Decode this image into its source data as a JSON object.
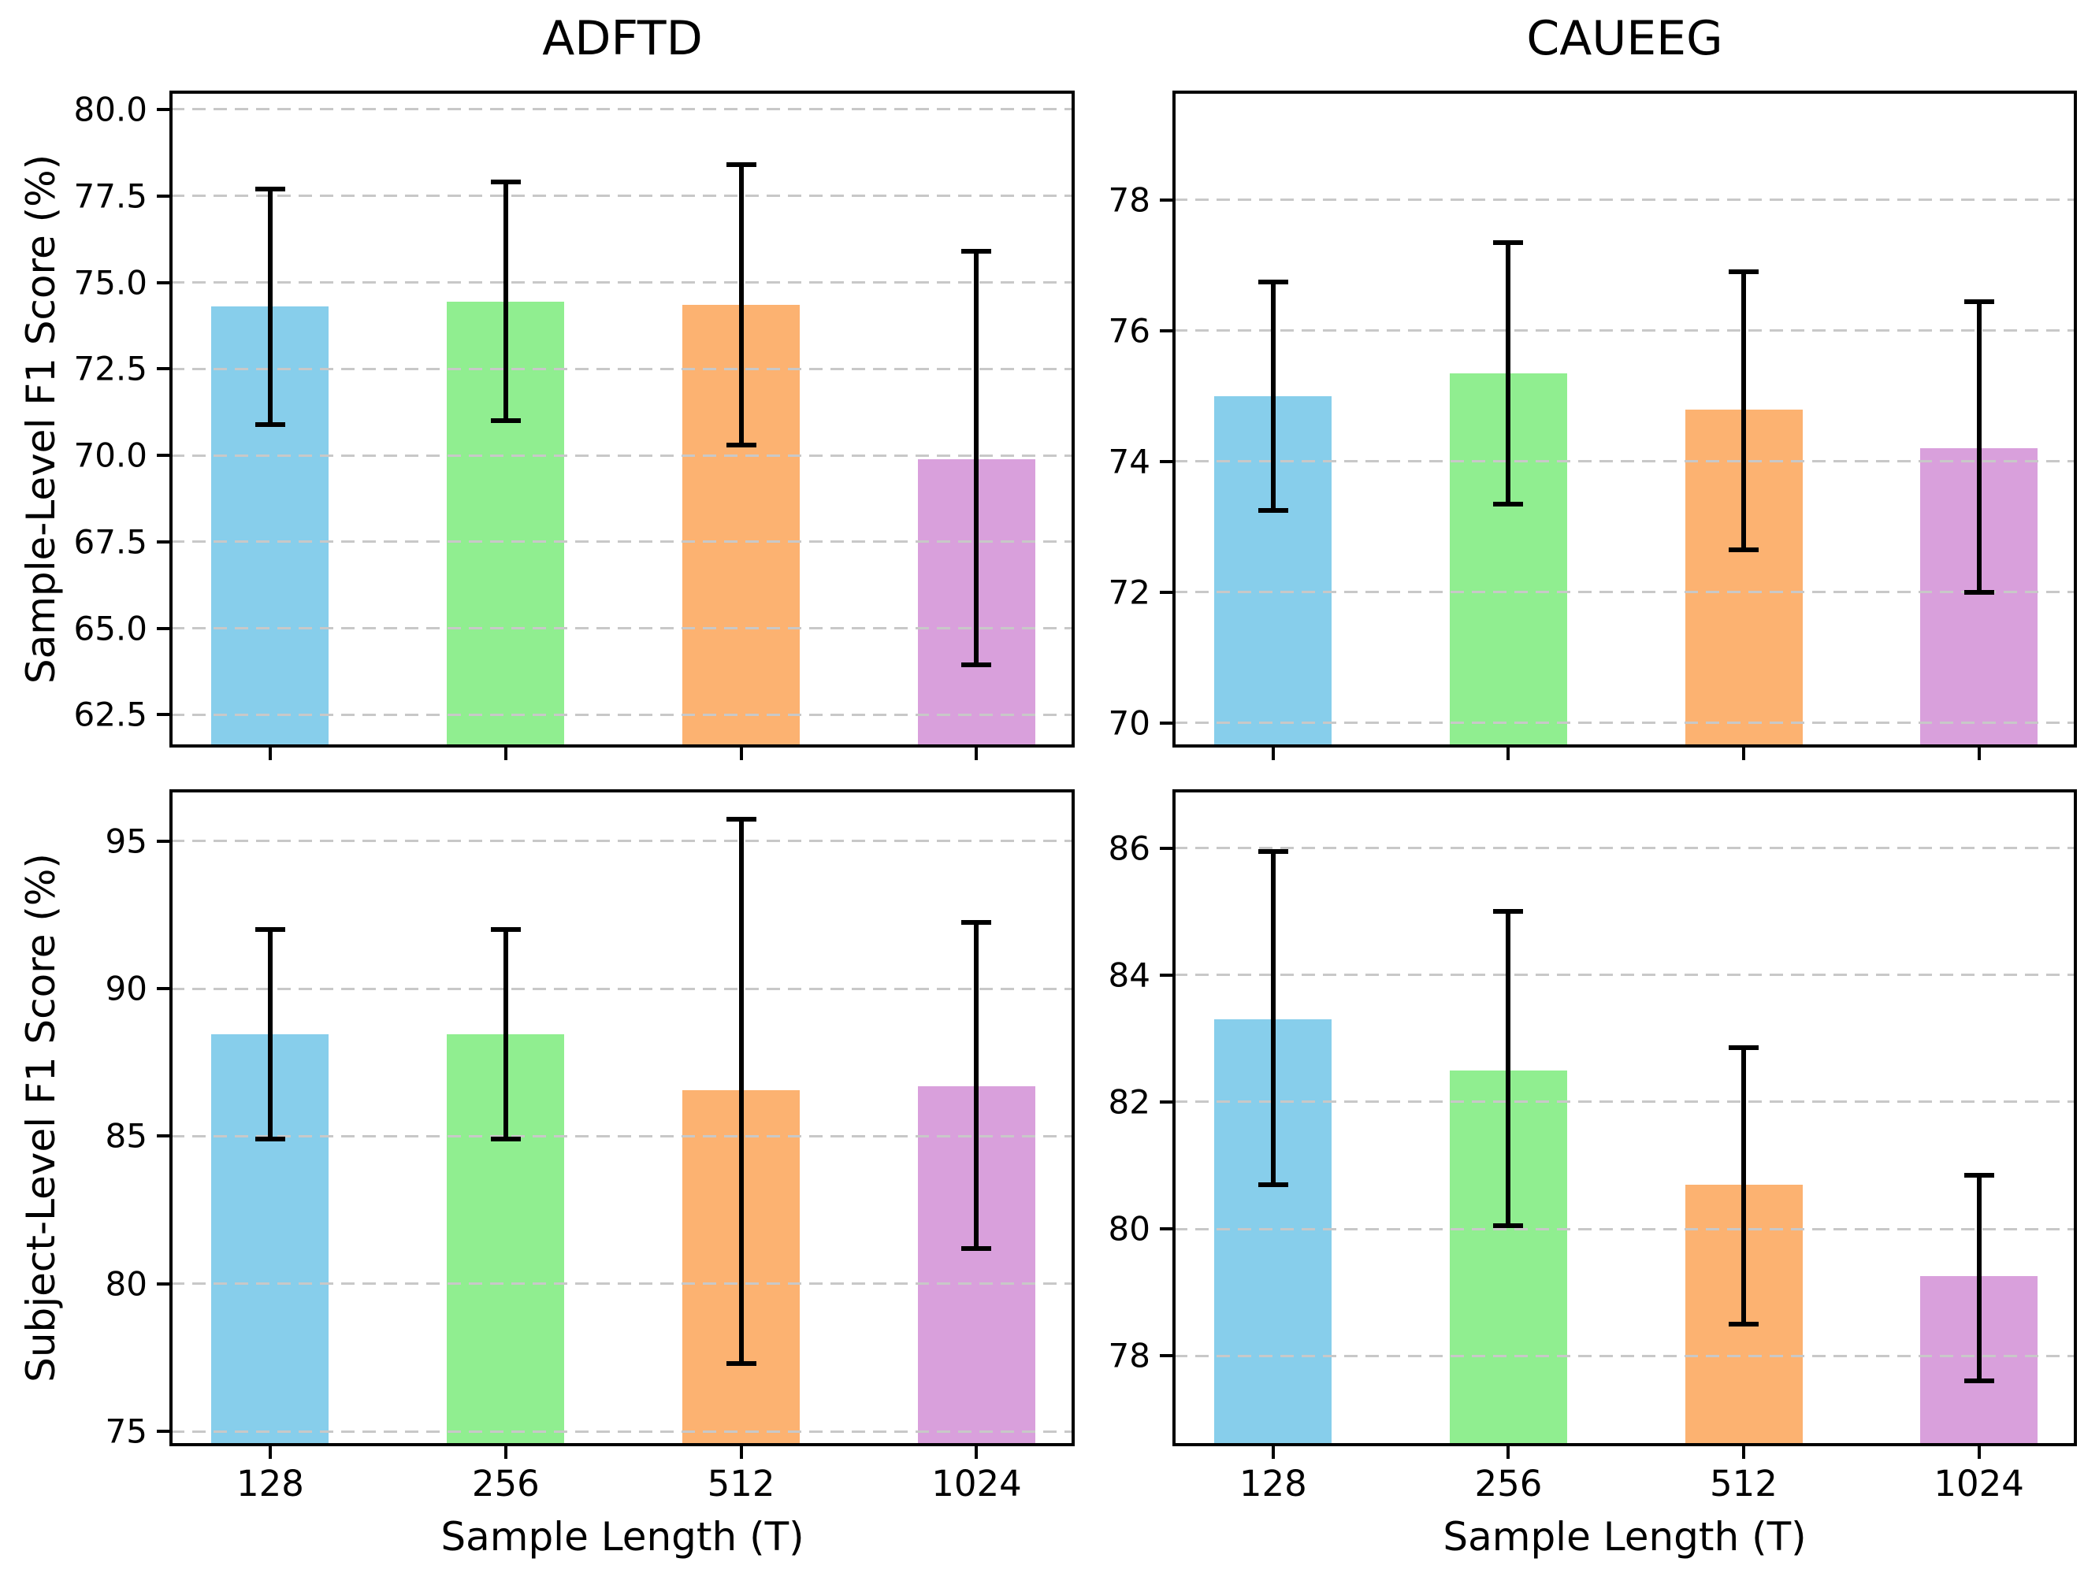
{
  "figure": {
    "column_titles": [
      "ADFTD",
      "CAUEEG"
    ],
    "xlabel": "Sample Length (T)",
    "categories": [
      "128",
      "256",
      "512",
      "1024"
    ],
    "bar_colors": [
      "#87CEEB",
      "#90EE90",
      "#FCB271",
      "#D9A0DC"
    ],
    "grid_color": "#c8c8c8",
    "errorbar_color": "#000000",
    "row_ylabels": [
      "Sample-Level F1 Score (%)",
      "Subject-Level F1 Score (%)"
    ]
  },
  "chart_data": [
    {
      "type": "bar",
      "title": "ADFTD",
      "ylabel": "Sample-Level F1 Score (%)",
      "xlabel": "",
      "categories": [
        "128",
        "256",
        "512",
        "1024"
      ],
      "values": [
        74.3,
        74.45,
        74.35,
        69.9
      ],
      "error_low": [
        70.9,
        71.0,
        70.3,
        63.95
      ],
      "error_high": [
        77.7,
        77.9,
        78.4,
        75.9
      ],
      "ytick_values": [
        80.0,
        77.5,
        75.0,
        72.5,
        70.0,
        67.5,
        65.0,
        62.5
      ],
      "ytick_labels": [
        "80.0",
        "77.5",
        "75.0",
        "72.5",
        "70.0",
        "67.5",
        "65.0",
        "62.5"
      ],
      "ylim": [
        61.6,
        80.5
      ],
      "grid": true,
      "legend": "none"
    },
    {
      "type": "bar",
      "title": "CAUEEG",
      "ylabel": "",
      "xlabel": "",
      "categories": [
        "128",
        "256",
        "512",
        "1024"
      ],
      "values": [
        75.0,
        75.35,
        74.8,
        74.2
      ],
      "error_low": [
        73.25,
        73.35,
        72.65,
        72.0
      ],
      "error_high": [
        76.75,
        77.35,
        76.9,
        76.45
      ],
      "ytick_values": [
        78,
        76,
        74,
        72,
        70
      ],
      "ytick_labels": [
        "78",
        "76",
        "74",
        "72",
        "70"
      ],
      "ylim": [
        69.65,
        79.65
      ],
      "grid": true,
      "legend": "none"
    },
    {
      "type": "bar",
      "title": "",
      "ylabel": "Subject-Level F1 Score (%)",
      "xlabel": "Sample Length (T)",
      "categories": [
        "128",
        "256",
        "512",
        "1024"
      ],
      "values": [
        88.45,
        88.45,
        86.55,
        86.7
      ],
      "error_low": [
        84.9,
        84.9,
        77.3,
        81.2
      ],
      "error_high": [
        92.0,
        92.0,
        95.75,
        92.25
      ],
      "ytick_values": [
        95,
        90,
        85,
        80,
        75
      ],
      "ytick_labels": [
        "95",
        "90",
        "85",
        "80",
        "75"
      ],
      "ylim": [
        74.55,
        96.7
      ],
      "grid": true,
      "legend": "none"
    },
    {
      "type": "bar",
      "title": "",
      "ylabel": "",
      "xlabel": "Sample Length (T)",
      "categories": [
        "128",
        "256",
        "512",
        "1024"
      ],
      "values": [
        83.3,
        82.5,
        80.7,
        79.25
      ],
      "error_low": [
        80.7,
        80.05,
        78.5,
        77.6
      ],
      "error_high": [
        85.95,
        85.0,
        82.85,
        80.85
      ],
      "ytick_values": [
        86,
        84,
        82,
        80,
        78
      ],
      "ytick_labels": [
        "86",
        "84",
        "82",
        "80",
        "78"
      ],
      "ylim": [
        76.6,
        86.9
      ],
      "grid": true,
      "legend": "none"
    }
  ]
}
